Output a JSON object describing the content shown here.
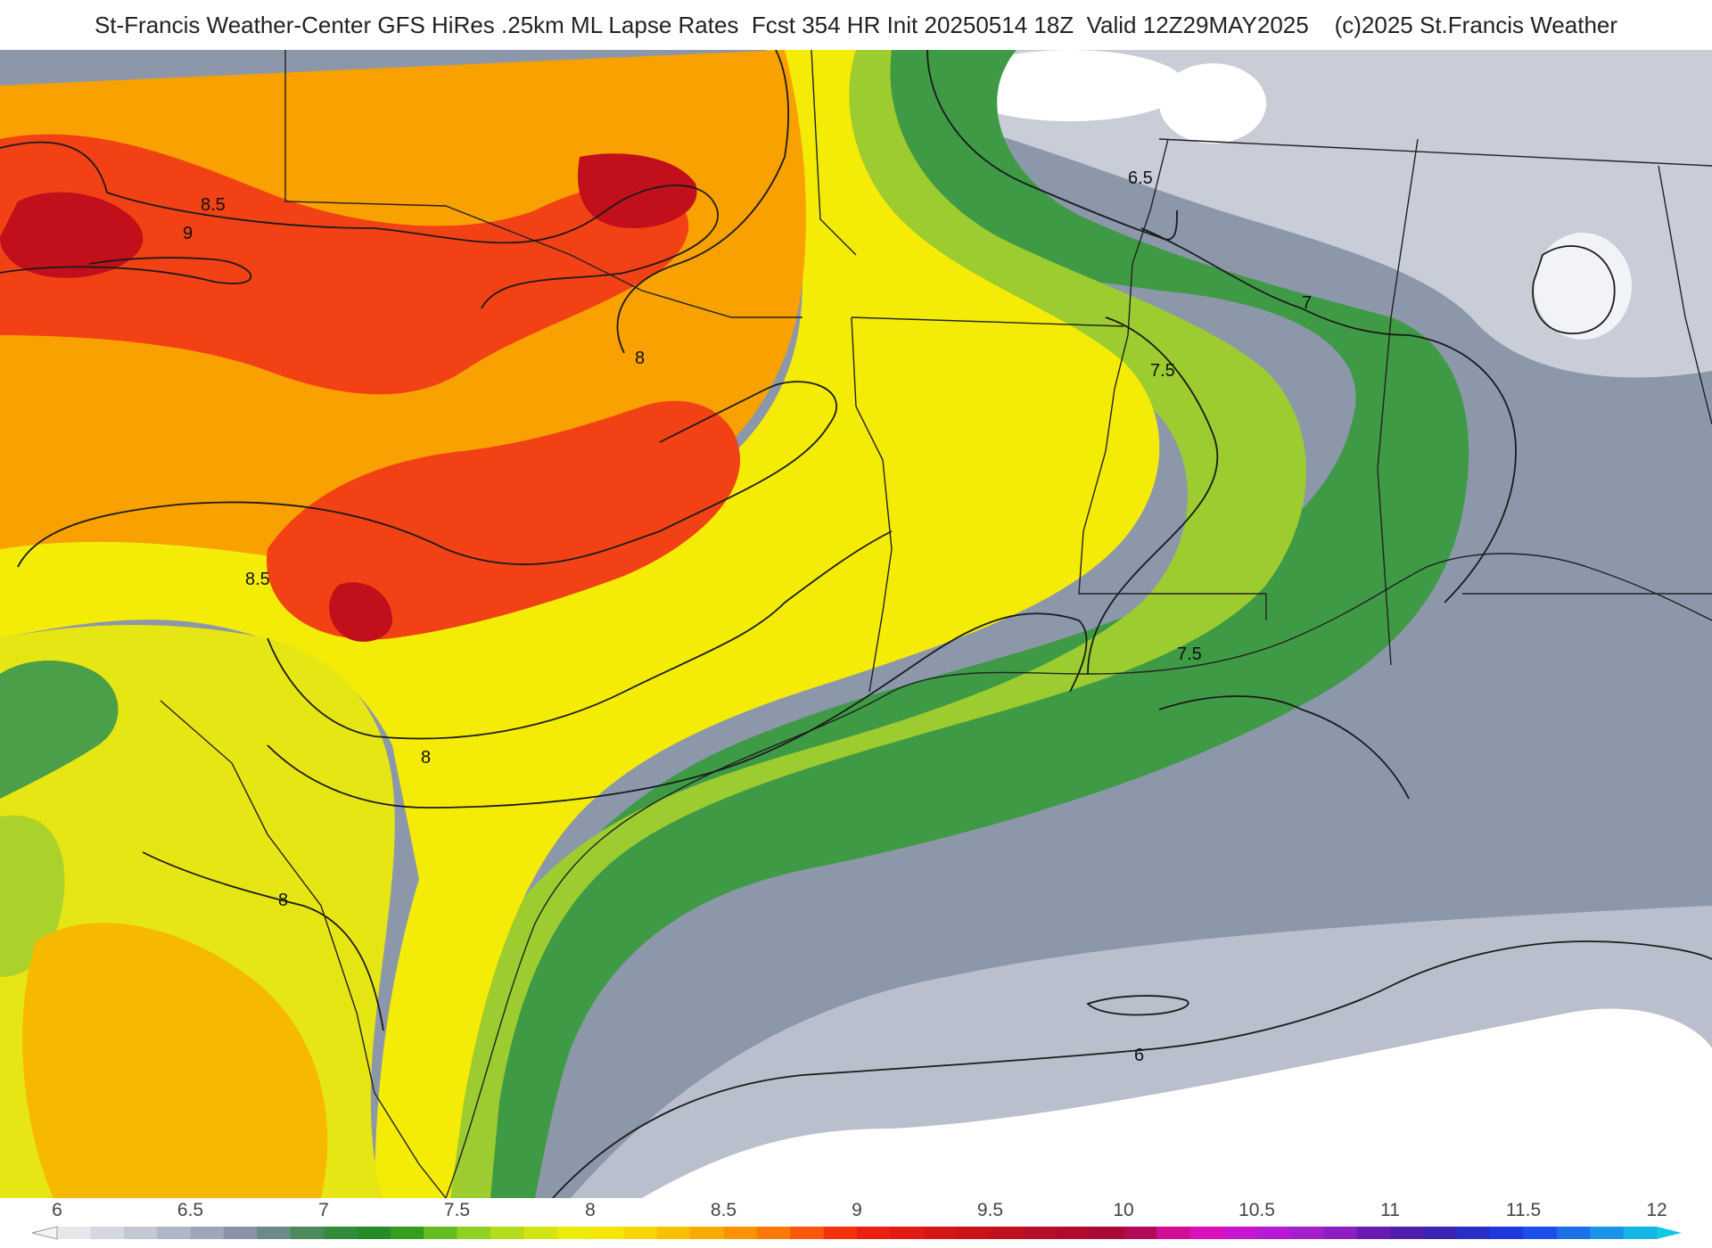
{
  "header": {
    "title": "St-Francis Weather-Center GFS HiRes .25km ML Lapse Rates  Fcst 354 HR Init 20250514 18Z  Valid 12Z29MAY2025    (c)2025 St.Francis Weather"
  },
  "map": {
    "field": "ML Lapse Rates",
    "contour_labels": [
      "8.5",
      "9",
      "8",
      "6.5",
      "7",
      "7.5",
      "8.5",
      "7.5",
      "8",
      "8",
      "6"
    ],
    "colors": {
      "c6": "#e8e8ee",
      "c6_5": "#a9afc0",
      "c7": "#46a047",
      "c7_5": "#9fd02c",
      "c8": "#f6ef00",
      "c8_5": "#f9a300",
      "c9": "#f23b13",
      "c9_5": "#c60c18",
      "land_low": "#8a94a8",
      "water": "#ffffff"
    }
  },
  "colorbar": {
    "ticks": [
      "6",
      "6.5",
      "7",
      "7.5",
      "8",
      "8.5",
      "9",
      "9.5",
      "10",
      "10.5",
      "11",
      "11.5",
      "12"
    ],
    "min": 6,
    "max": 12,
    "step": 0.125
  }
}
